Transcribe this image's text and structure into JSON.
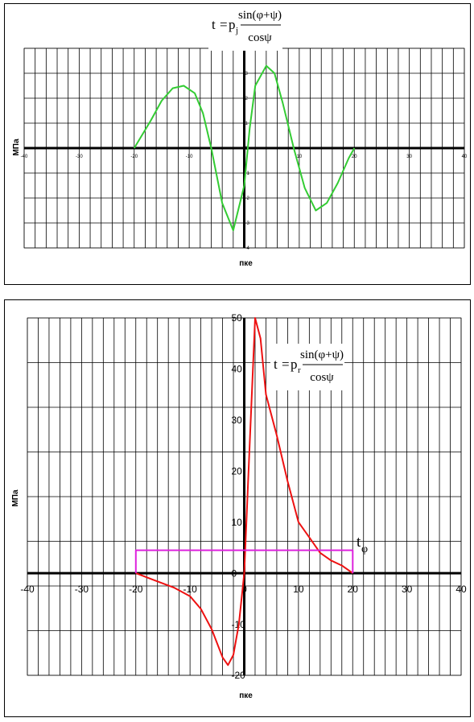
{
  "chart_data": [
    {
      "type": "line",
      "title": "",
      "formula": {
        "lhs": "t",
        "coef": "p",
        "sub": "j",
        "numerator": "sin(φ+ψ)",
        "denominator": "cosψ"
      },
      "xlabel": "пке",
      "ylabel": "МПа",
      "xlim": [
        -40,
        40
      ],
      "ylim": [
        -4,
        4
      ],
      "x_ticks": [
        "-40",
        "-30",
        "-20",
        "-10",
        "0",
        "10",
        "20",
        "30",
        "40"
      ],
      "x_tick_values": [
        -40,
        -30,
        -20,
        -10,
        0,
        10,
        20,
        30,
        40
      ],
      "y_ticks": [
        "4",
        "3",
        "2",
        "1",
        "0",
        "-1",
        "-2",
        "-3",
        "-4"
      ],
      "y_tick_values": [
        4,
        3,
        2,
        1,
        0,
        -1,
        -2,
        -3,
        -4
      ],
      "series": [
        {
          "color": "#33cc33",
          "x": [
            -20,
            -17,
            -15,
            -13,
            -11,
            -9,
            -7.5,
            -6,
            -4,
            -2,
            0,
            1,
            2,
            4,
            5.5,
            7,
            9,
            11,
            13,
            15,
            17,
            19,
            20
          ],
          "y": [
            0,
            1.1,
            1.9,
            2.4,
            2.5,
            2.2,
            1.4,
            0,
            -2.2,
            -3.3,
            -1.5,
            0.8,
            2.5,
            3.3,
            3.0,
            1.8,
            0,
            -1.6,
            -2.5,
            -2.2,
            -1.4,
            -0.4,
            0
          ]
        }
      ]
    },
    {
      "type": "line",
      "title": "",
      "formula": {
        "lhs": "t",
        "coef": "p",
        "sub": "r",
        "numerator": "sin(φ+ψ)",
        "denominator": "cosψ"
      },
      "xlabel": "пке",
      "ylabel": "МПа",
      "xlim": [
        -40,
        40
      ],
      "ylim": [
        -20,
        50
      ],
      "x_ticks": [
        "-40",
        "-30",
        "-20",
        "-10",
        "0",
        "10",
        "20",
        "30",
        "40"
      ],
      "x_tick_values": [
        -40,
        -30,
        -20,
        -10,
        0,
        10,
        20,
        30,
        40
      ],
      "y_ticks": [
        "50",
        "40",
        "30",
        "20",
        "10",
        "0",
        "-10",
        "-20"
      ],
      "y_tick_values": [
        50,
        40,
        30,
        20,
        10,
        0,
        -10,
        -20
      ],
      "annotation": {
        "text": "t",
        "sub": "φ"
      },
      "series": [
        {
          "color": "#ee1111",
          "x": [
            -20,
            -17,
            -13,
            -10,
            -8,
            -6,
            -4,
            -3,
            -2,
            -1,
            0,
            1,
            2,
            3,
            4,
            6,
            8,
            10,
            12,
            14,
            16,
            18,
            20
          ],
          "y": [
            0,
            -1.2,
            -2.8,
            -4.5,
            -7,
            -11,
            -16.5,
            -18,
            -16,
            -10,
            0,
            25,
            50,
            46,
            35,
            27,
            18,
            10,
            7,
            4,
            2.5,
            1.5,
            0
          ]
        },
        {
          "color": "#dd22dd",
          "x": [
            -20,
            -20,
            20,
            20
          ],
          "y": [
            0,
            4.5,
            4.5,
            0
          ]
        }
      ]
    }
  ]
}
